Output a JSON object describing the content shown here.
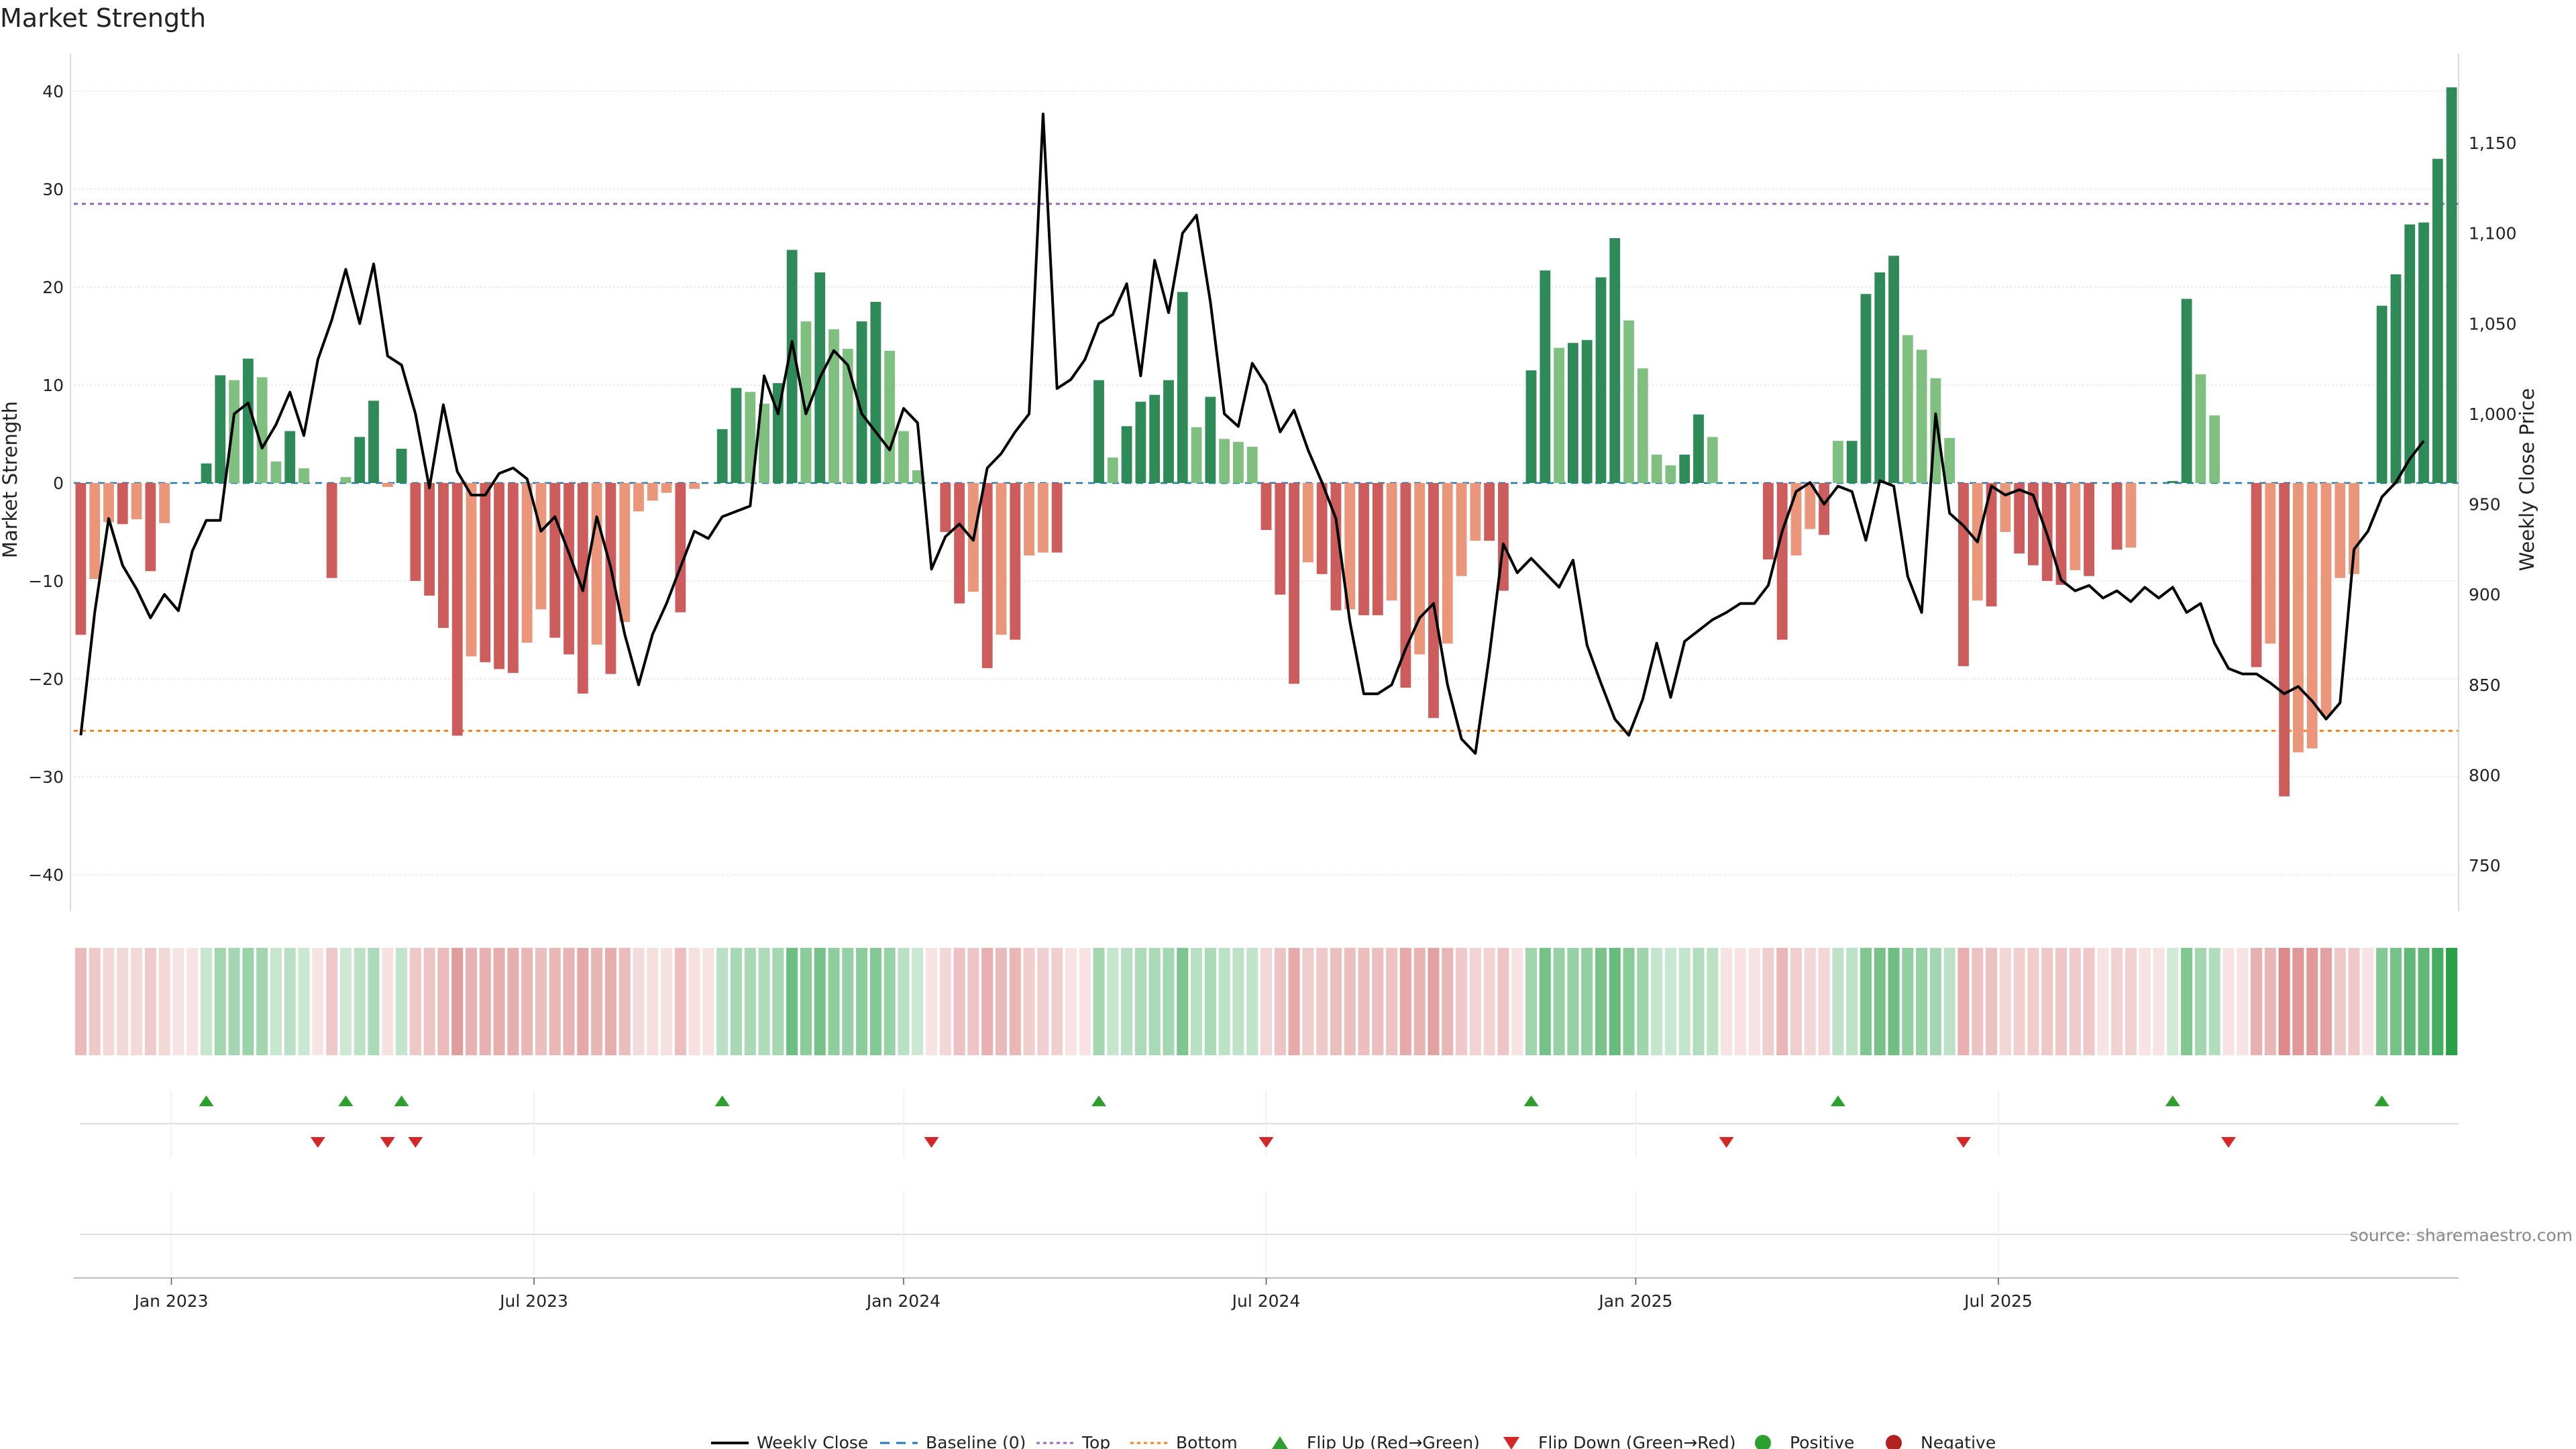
{
  "chart_data": {
    "type": "bar",
    "title": "Market Strength",
    "ylabel_left": "Market Strength",
    "ylabel_right": "Weekly Close Price",
    "source": "source: sharemaestro.com",
    "left_axis": {
      "range": [
        -44,
        44
      ],
      "ticks": [
        "40",
        "30",
        "20",
        "10",
        "0",
        "−10",
        "−20",
        "−30",
        "−40"
      ],
      "tick_values": [
        40,
        30,
        20,
        10,
        0,
        -10,
        -20,
        -30,
        -40
      ]
    },
    "right_axis": {
      "range": [
        730,
        1190
      ],
      "ticks": [
        "1,150",
        "1,100",
        "1,050",
        "1,000",
        "950",
        "900",
        "850",
        "800",
        "750"
      ],
      "tick_values": [
        1150,
        1100,
        1050,
        1000,
        950,
        900,
        850,
        800,
        750
      ]
    },
    "x_axis": {
      "ticks": [
        "Jan 2023",
        "Jul 2023",
        "Jan 2024",
        "Jul 2024",
        "Jan 2025",
        "Jul 2025"
      ],
      "tick_week_index": [
        6.5,
        32.5,
        59,
        85,
        111.5,
        137.5
      ]
    },
    "top_line": 28.5,
    "bottom_line": -25.3,
    "baseline": 0,
    "colors": {
      "dark_green": "#2e8b57",
      "light_green": "#7fbf7f",
      "dark_red": "#cd5c5c",
      "light_red": "#e9967a",
      "line": "#000000",
      "top": "#9467bd",
      "bottom": "#ff7f0e",
      "baseline": "#1f77b4",
      "flip_up": "#2ca02c",
      "flip_down": "#d62728"
    },
    "market_strength": [
      -15.5,
      -9.8,
      -4,
      -4.2,
      -3.7,
      -9,
      -4.1,
      0,
      0,
      2,
      11,
      10.5,
      12.7,
      10.8,
      2.2,
      5.3,
      1.5,
      0,
      -9.7,
      0.6,
      4.7,
      8.4,
      -0.4,
      3.5,
      -10,
      -11.5,
      -14.8,
      -25.8,
      -17.7,
      -18.3,
      -19,
      -19.4,
      -16.3,
      -12.9,
      -15.8,
      -17.5,
      -21.5,
      -16.5,
      -19.5,
      -14.2,
      -2.9,
      -1.8,
      -1,
      -13.2,
      -0.6,
      0,
      5.5,
      9.7,
      9.3,
      8.1,
      10.2,
      23.8,
      16.5,
      21.5,
      15.7,
      13.7,
      16.5,
      18.5,
      13.5,
      5.3,
      1.3,
      0,
      -5,
      -12.3,
      -11.1,
      -18.9,
      -15.5,
      -16,
      -7.4,
      -7.1,
      -7.1,
      0,
      0,
      10.5,
      2.6,
      5.8,
      8.3,
      9,
      10.5,
      19.5,
      5.7,
      8.8,
      4.5,
      4.2,
      3.7,
      -4.8,
      -11.4,
      -20.5,
      -8.1,
      -9.3,
      -13,
      -12.9,
      -13.5,
      -13.5,
      -12,
      -20.9,
      -17.5,
      -24,
      -16.4,
      -9.5,
      -5.9,
      -5.9,
      -11,
      0,
      11.5,
      21.7,
      13.8,
      14.3,
      14.6,
      21,
      25,
      16.6,
      11.7,
      2.9,
      1.8,
      2.9,
      7,
      4.7,
      0,
      0,
      0,
      -7.8,
      -16,
      -7.4,
      -4.7,
      -5.3,
      4.3,
      4.3,
      19.3,
      21.5,
      23.2,
      15.1,
      13.6,
      10.7,
      4.6,
      -18.7,
      -12,
      -12.6,
      -5,
      -7.2,
      -8.4,
      -10,
      -10.4,
      -8.9,
      -9.5,
      0,
      -6.8,
      -6.6,
      0,
      0,
      0.2,
      18.8,
      11.1,
      6.9,
      0,
      0,
      -18.8,
      -16.4,
      -32,
      -27.5,
      -27.1,
      -23.8,
      -9.7,
      -9.3,
      0,
      18.1,
      21.3,
      26.4,
      26.6,
      33.1,
      40.4
    ],
    "weekly_close": [
      822,
      890,
      942,
      916,
      903,
      887,
      900,
      891,
      924,
      941,
      941,
      1000,
      1006,
      981,
      994,
      1012,
      988,
      1030,
      1052,
      1080,
      1050,
      1083,
      1032,
      1027,
      1000,
      959,
      1005,
      968,
      955,
      955,
      967,
      970,
      964,
      935,
      943,
      923,
      902,
      943,
      915,
      878,
      850,
      878,
      895,
      915,
      935,
      931,
      943,
      946,
      949,
      1021,
      1000,
      1040,
      1000,
      1020,
      1035,
      1027,
      1000,
      990,
      980,
      1003,
      995,
      914,
      932,
      939,
      930,
      970,
      978,
      990,
      1000,
      1166,
      1014,
      1019,
      1030,
      1050,
      1055,
      1072,
      1021,
      1085,
      1056,
      1100,
      1110,
      1062,
      1000,
      993,
      1028,
      1016,
      990,
      1002,
      980,
      962,
      942,
      885,
      845,
      845,
      850,
      870,
      887,
      895,
      850,
      820,
      812,
      866,
      928,
      912,
      920,
      912,
      904,
      919,
      872,
      851,
      831,
      822,
      842,
      873,
      843,
      874,
      880,
      886,
      890,
      895,
      895,
      905,
      935,
      957,
      962,
      950,
      960,
      957,
      930,
      963,
      960,
      910,
      890,
      1000,
      945,
      938,
      929,
      960,
      955,
      958,
      955,
      933,
      908,
      902,
      905,
      898,
      902,
      896,
      904,
      898,
      904,
      890,
      895,
      873,
      859,
      856,
      856,
      851,
      845,
      849,
      841,
      831,
      840,
      925,
      935,
      954,
      962,
      975,
      985
    ]
  },
  "legend": [
    {
      "label": "Weekly Close",
      "kind": "line"
    },
    {
      "label": "Baseline (0)",
      "kind": "dash"
    },
    {
      "label": "Top",
      "kind": "dotted-purple"
    },
    {
      "label": "Bottom",
      "kind": "dotted-orange"
    },
    {
      "label": "Flip Up (Red→Green)",
      "kind": "tri-up"
    },
    {
      "label": "Flip Down (Green→Red)",
      "kind": "tri-down"
    },
    {
      "label": "Positive",
      "kind": "dot-green"
    },
    {
      "label": "Negative",
      "kind": "dot-red"
    }
  ]
}
